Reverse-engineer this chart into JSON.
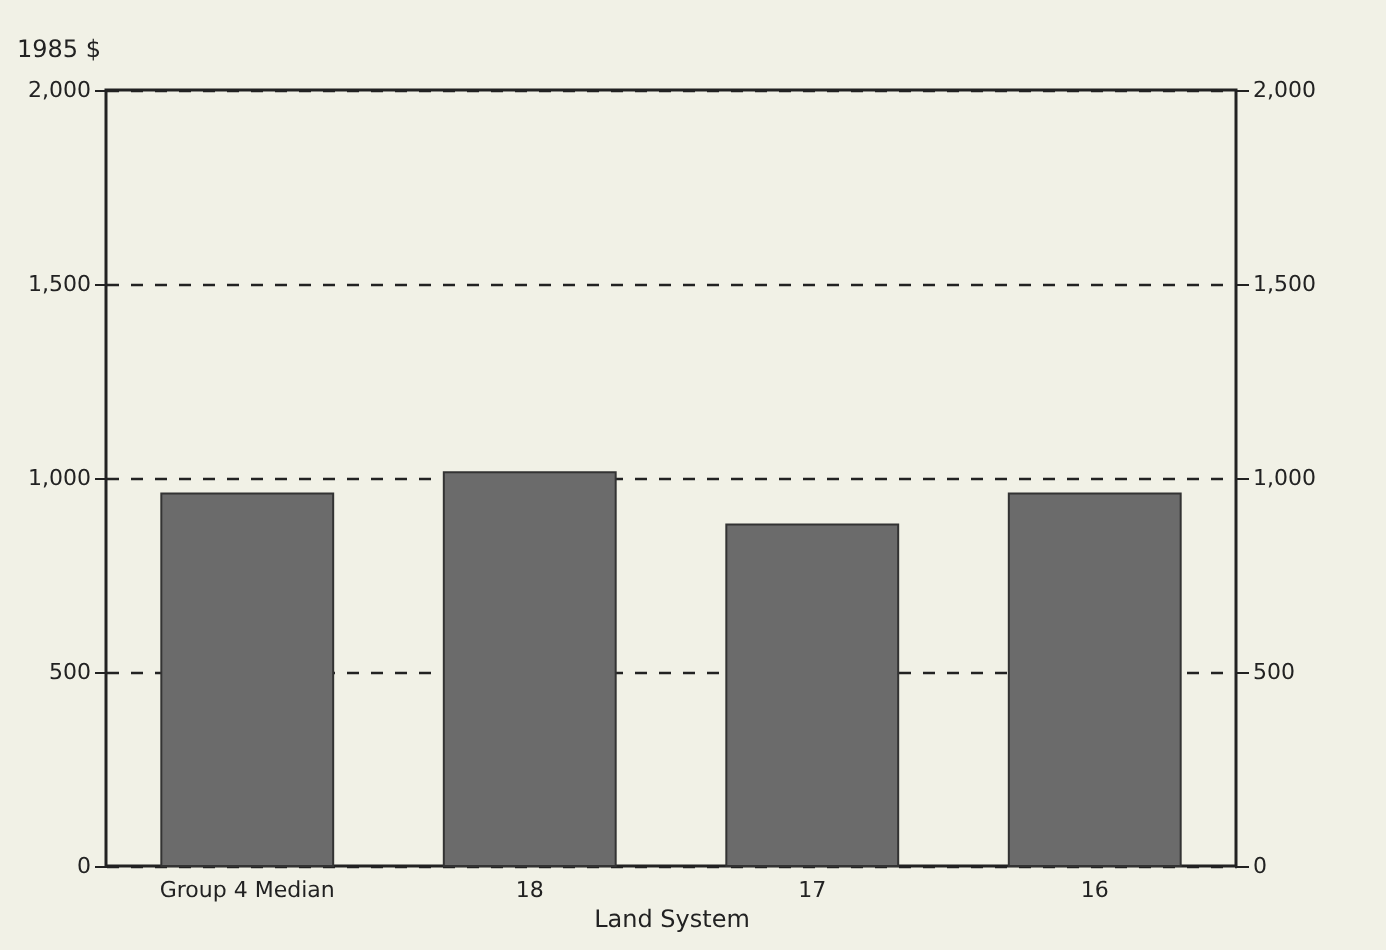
{
  "chart_data": {
    "type": "bar",
    "ylabel": "1985 $",
    "xlabel": "Land System",
    "categories": [
      "Group 4 Median",
      "18",
      "17",
      "16"
    ],
    "values": [
      960,
      1015,
      880,
      960
    ],
    "color": "#6b6b6b",
    "ylim": [
      0,
      2000
    ],
    "yticks": [
      0,
      500,
      {
        "value": 1000,
        "label": "1,000"
      },
      {
        "value": 1500,
        "label": "1,500"
      },
      {
        "value": 2000,
        "label": "2,000"
      }
    ],
    "y2lim": [
      0,
      2000
    ],
    "y2ticks": [
      0,
      500,
      {
        "value": 1000,
        "label": "1,000"
      },
      {
        "value": 1500,
        "label": "1,500"
      },
      {
        "value": 2000,
        "label": "2,000"
      }
    ],
    "grid": "y",
    "line_style": "dashed"
  }
}
